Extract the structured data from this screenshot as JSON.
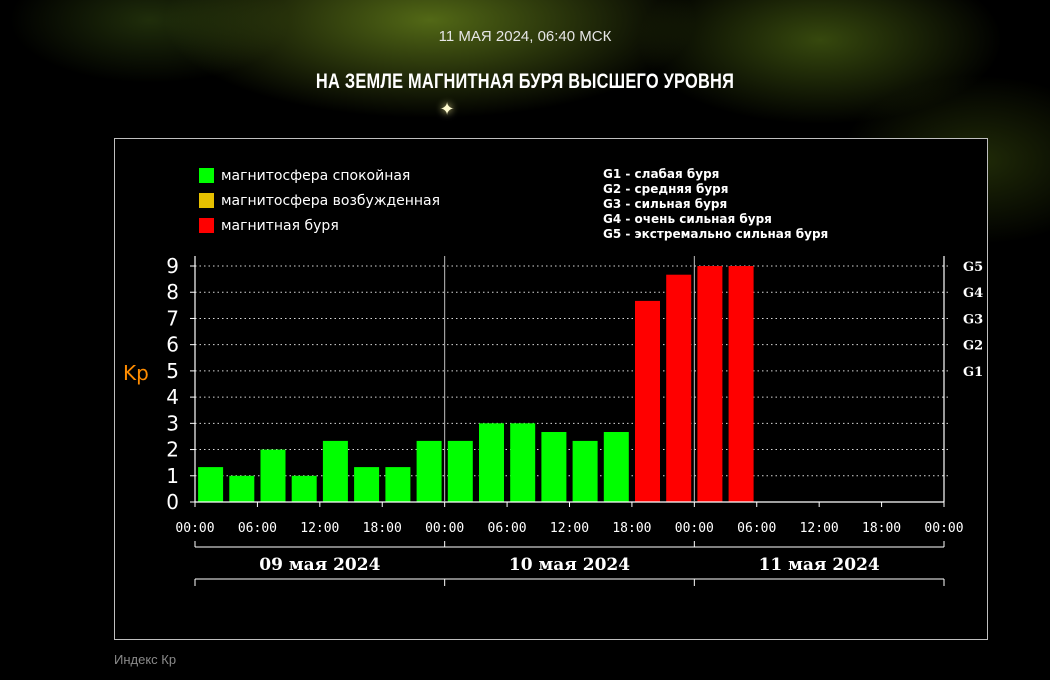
{
  "header": {
    "datetime": "11 МАЯ 2024, 06:40 МСК",
    "headline": "НА ЗЕМЛЕ МАГНИТНАЯ БУРЯ ВЫСШЕГО УРОВНЯ"
  },
  "caption": "Индекс Кр",
  "colors": {
    "calm": "#00ff00",
    "excited": "#e6c000",
    "storm": "#ff0000",
    "ylabel": "#ff8c00"
  },
  "chart_data": {
    "type": "bar",
    "ylabel": "Kp",
    "ylim": [
      0,
      9
    ],
    "yticks": [
      "0",
      "1",
      "2",
      "3",
      "4",
      "5",
      "6",
      "7",
      "8",
      "9"
    ],
    "g_levels": [
      {
        "label": "G1",
        "kp": 5
      },
      {
        "label": "G2",
        "kp": 6
      },
      {
        "label": "G3",
        "kp": 7
      },
      {
        "label": "G4",
        "kp": 8
      },
      {
        "label": "G5",
        "kp": 9
      }
    ],
    "g_descriptions": [
      "G1 - слабая буря",
      "G2 - средняя буря",
      "G3 - сильная буря",
      "G4 - очень сильная буря",
      "G5 - экстремально сильная буря"
    ],
    "legend": [
      {
        "label": "магнитосфера спокойная",
        "status": "calm"
      },
      {
        "label": "магнитосфера возбужденная",
        "status": "excited"
      },
      {
        "label": "магнитная буря",
        "status": "storm"
      }
    ],
    "legend_position": "top-left",
    "xticks": [
      "00:00",
      "06:00",
      "12:00",
      "18:00",
      "00:00",
      "06:00",
      "12:00",
      "18:00",
      "00:00",
      "06:00",
      "12:00",
      "18:00",
      "00:00"
    ],
    "days": [
      "09 мая 2024",
      "10 мая 2024",
      "11 мая 2024"
    ],
    "grid": "dotted horizontal",
    "values": [
      1.33,
      1.0,
      2.0,
      1.0,
      2.33,
      1.33,
      1.33,
      2.33,
      2.33,
      3.0,
      3.0,
      2.67,
      2.33,
      2.67,
      7.67,
      8.67,
      9.0,
      9.0
    ],
    "status": [
      "calm",
      "calm",
      "calm",
      "calm",
      "calm",
      "calm",
      "calm",
      "calm",
      "calm",
      "calm",
      "calm",
      "calm",
      "calm",
      "calm",
      "storm",
      "storm",
      "storm",
      "storm"
    ]
  }
}
